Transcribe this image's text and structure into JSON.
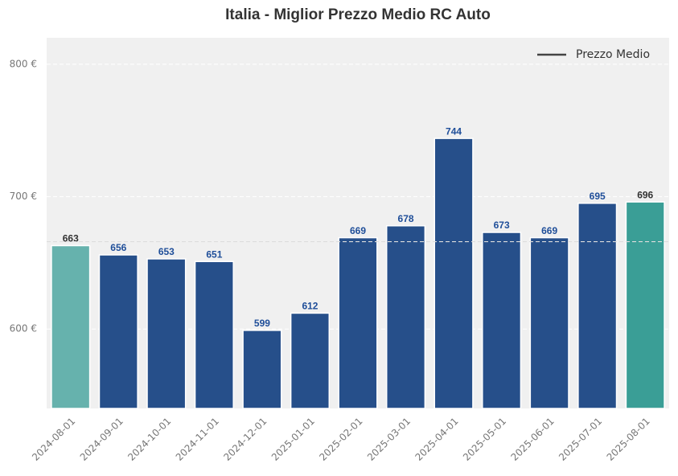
{
  "chart_data": {
    "type": "bar",
    "title": "Italia - Miglior Prezzo Medio RC Auto",
    "categories": [
      "2024-08-01",
      "2024-09-01",
      "2024-10-01",
      "2024-11-01",
      "2024-12-01",
      "2025-01-01",
      "2025-02-01",
      "2025-03-01",
      "2025-04-01",
      "2025-05-01",
      "2025-06-01",
      "2025-07-01",
      "2025-08-01"
    ],
    "values": [
      663,
      656,
      653,
      651,
      599,
      612,
      669,
      678,
      744,
      673,
      669,
      695,
      696
    ],
    "colors": [
      "#66b2ad",
      "#264f8a",
      "#264f8a",
      "#264f8a",
      "#264f8a",
      "#264f8a",
      "#264f8a",
      "#264f8a",
      "#264f8a",
      "#264f8a",
      "#264f8a",
      "#264f8a",
      "#3a9e96"
    ],
    "label_colors": [
      "#333333",
      "#1f4e99",
      "#1f4e99",
      "#1f4e99",
      "#1f4e99",
      "#1f4e99",
      "#1f4e99",
      "#1f4e99",
      "#1f4e99",
      "#1f4e99",
      "#1f4e99",
      "#1f4e99",
      "#333333"
    ],
    "ylim": [
      540,
      820
    ],
    "yticks": [
      {
        "value": 600,
        "label": "600 €"
      },
      {
        "value": 700,
        "label": "700 €"
      },
      {
        "value": 800,
        "label": "800 €"
      }
    ],
    "grid": true,
    "reference_line": {
      "name": "Prezzo Medio",
      "value": 666,
      "color": "#dddddd",
      "legend_color": "#444444"
    },
    "legend": "upper right"
  }
}
